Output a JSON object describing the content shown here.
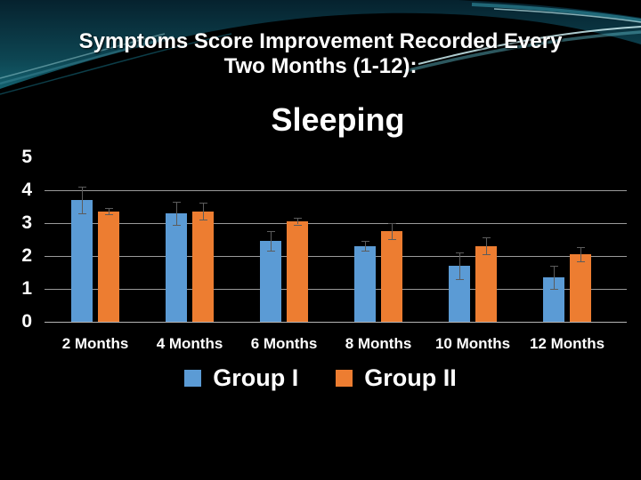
{
  "slide": {
    "title_line1": "Symptoms Score Improvement Recorded Every",
    "title_line2": "Two Months (1-12):"
  },
  "chart_data": {
    "type": "bar",
    "title": "Sleeping",
    "categories": [
      "2 Months",
      "4 Months",
      "6 Months",
      "8 Months",
      "10 Months",
      "12 Months"
    ],
    "series": [
      {
        "name": "Group I",
        "color": "#5B9BD5",
        "values": [
          3.7,
          3.3,
          2.45,
          2.3,
          1.7,
          1.35
        ],
        "errors": [
          0.4,
          0.35,
          0.3,
          0.15,
          0.4,
          0.35
        ]
      },
      {
        "name": "Group II",
        "color": "#ED7D31",
        "values": [
          3.35,
          3.35,
          3.05,
          2.75,
          2.3,
          2.05
        ],
        "errors": [
          0.1,
          0.25,
          0.1,
          0.25,
          0.25,
          0.22
        ]
      }
    ],
    "ylim": [
      0,
      5
    ],
    "yticks": [
      0,
      1,
      2,
      3,
      4,
      5
    ],
    "gridlines": [
      0,
      1,
      2,
      3,
      4
    ],
    "error_bars": true,
    "legend_position": "bottom",
    "grid": true
  },
  "colors": {
    "background": "#000000",
    "teal_top": "#06222e",
    "teal_bottom": "#17707e",
    "text": "#ffffff",
    "gridline": "#9a9a9a",
    "error_bar": "#5c5c5c"
  }
}
